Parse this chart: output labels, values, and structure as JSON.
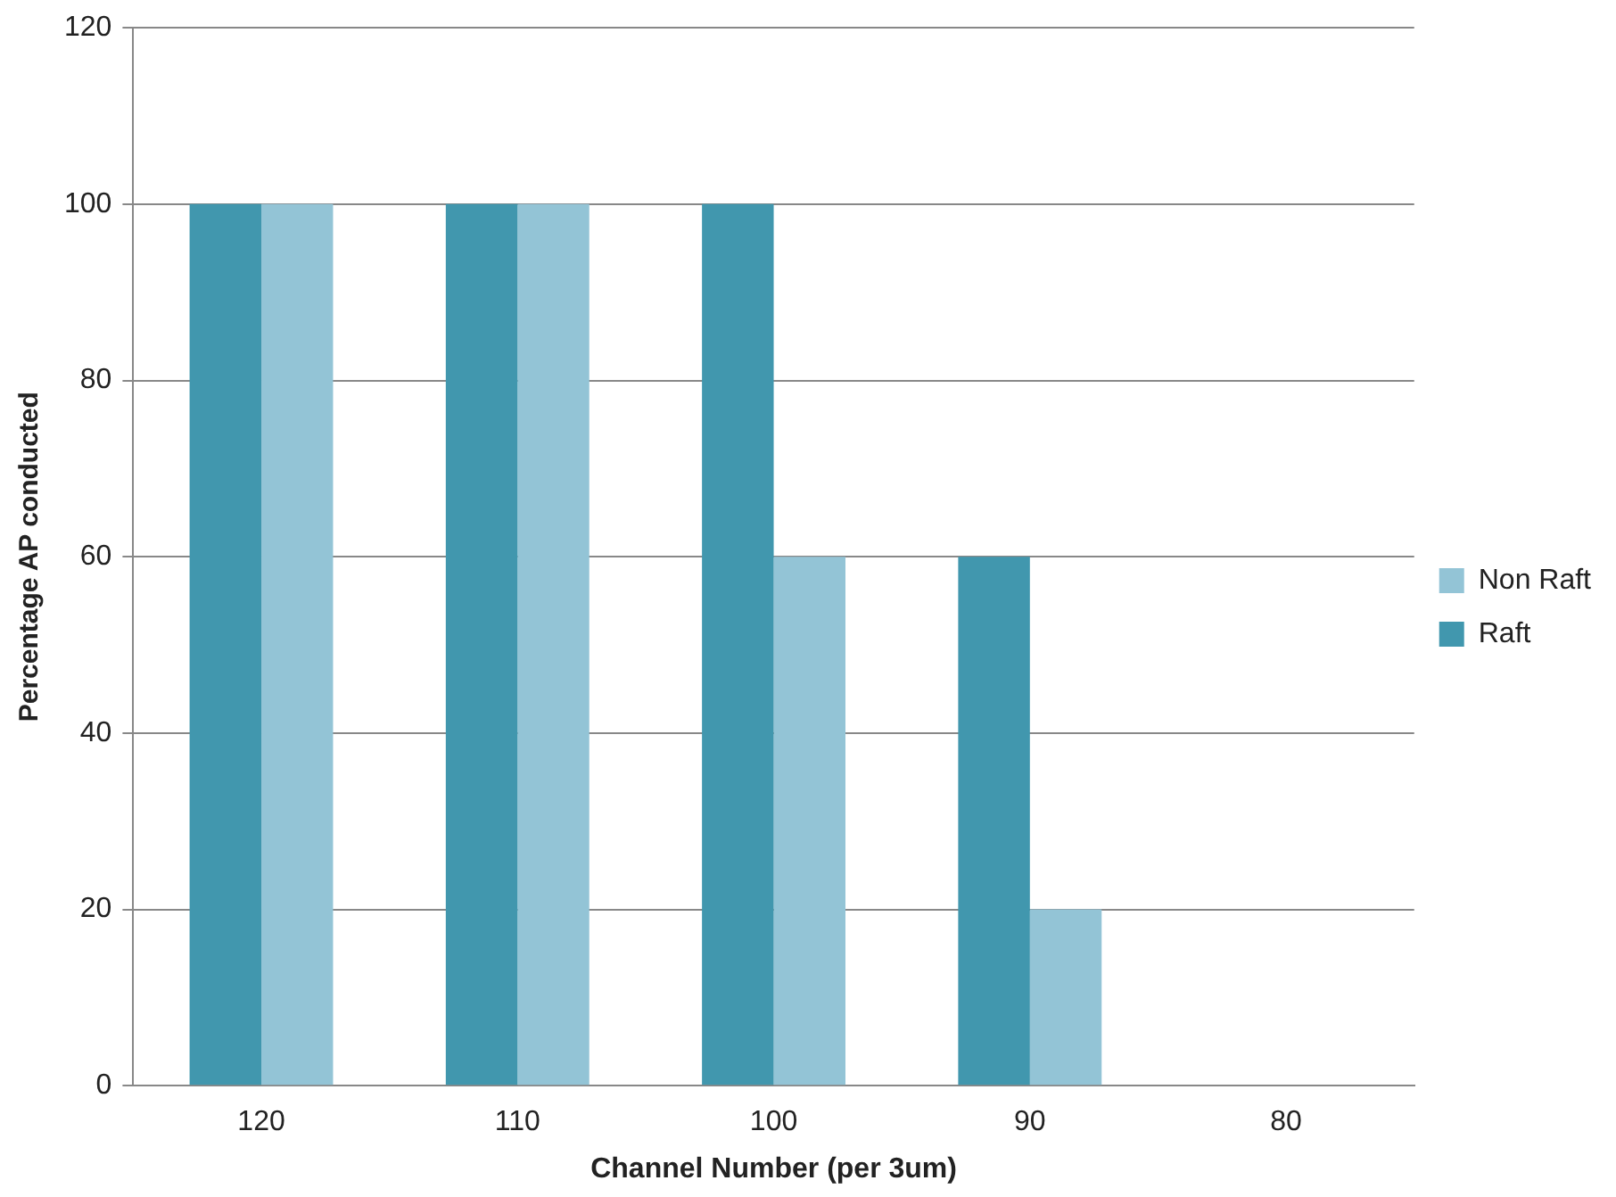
{
  "chart_data": {
    "type": "bar",
    "xlabel": "Channel Number (per 3um)",
    "ylabel": "Percentage AP conducted",
    "categories": [
      "120",
      "110",
      "100",
      "90",
      "80"
    ],
    "series": [
      {
        "name": "Raft",
        "color": "#4197ae",
        "values": [
          100,
          100,
          100,
          60,
          0
        ]
      },
      {
        "name": "Non Raft",
        "color": "#93c4d6",
        "values": [
          100,
          100,
          60,
          20,
          0
        ]
      }
    ],
    "ylim": [
      0,
      120
    ],
    "yticks": [
      0,
      20,
      40,
      60,
      80,
      100,
      120
    ],
    "grid": "y",
    "legend": "right"
  }
}
